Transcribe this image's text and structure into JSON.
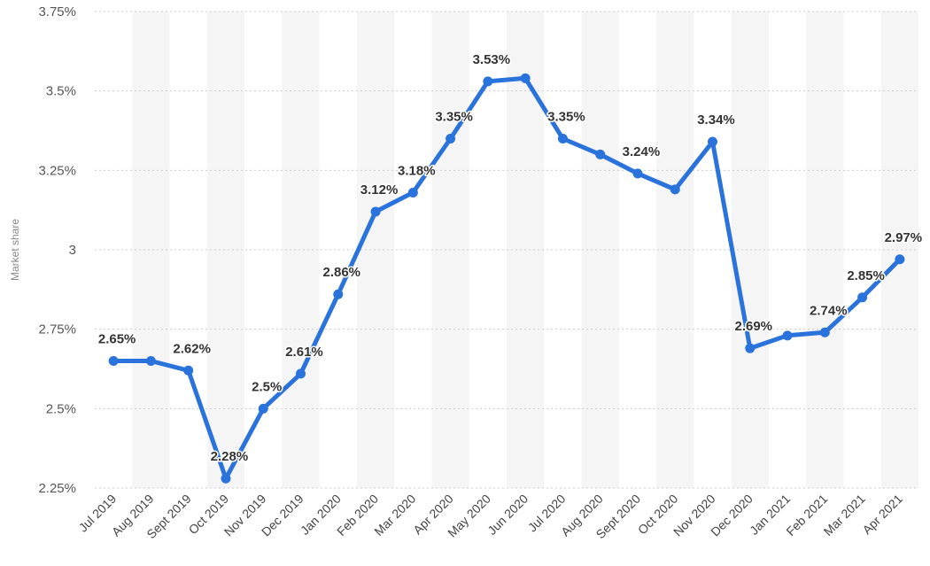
{
  "chart_data": {
    "type": "line",
    "title": "",
    "xlabel": "",
    "ylabel": "Market share",
    "categories": [
      "Jul 2019",
      "Aug 2019",
      "Sept 2019",
      "Oct 2019",
      "Nov 2019",
      "Dec 2019",
      "Jan 2020",
      "Feb 2020",
      "Mar 2020",
      "Apr 2020",
      "May 2020",
      "Jun 2020",
      "Jul 2020",
      "Aug 2020",
      "Sept 2020",
      "Oct 2020",
      "Nov 2020",
      "Dec 2020",
      "Jan 2021",
      "Feb 2021",
      "Mar 2021",
      "Apr 2021"
    ],
    "series": [
      {
        "values": [
          2.65,
          2.65,
          2.62,
          2.28,
          2.5,
          2.61,
          2.86,
          3.12,
          3.18,
          3.35,
          3.53,
          3.54,
          3.35,
          3.3,
          3.24,
          3.19,
          3.34,
          2.69,
          2.73,
          2.74,
          2.85,
          2.97
        ],
        "labels": [
          "2.65%",
          "",
          "2.62%",
          "2.28%",
          "2.5%",
          "2.61%",
          "2.86%",
          "3.12%",
          "3.18%",
          "3.35%",
          "3.53%",
          "",
          "3.35%",
          "",
          "3.24%",
          "",
          "3.34%",
          "2.69%",
          "",
          "2.74%",
          "2.85%",
          "2.97%"
        ],
        "color": "#2a72dc"
      }
    ],
    "ylim": [
      2.25,
      3.75
    ],
    "yticks": [
      {
        "value": 2.25,
        "label": "2.25%"
      },
      {
        "value": 2.5,
        "label": "2.5%"
      },
      {
        "value": 2.75,
        "label": "2.75%"
      },
      {
        "value": 3,
        "label": "3"
      },
      {
        "value": 3.25,
        "label": "3.25%"
      },
      {
        "value": 3.5,
        "label": "3.5%"
      },
      {
        "value": 3.75,
        "label": "3.75%"
      }
    ],
    "grid": true,
    "legend": "none",
    "band_color": "#f5f5f5"
  }
}
